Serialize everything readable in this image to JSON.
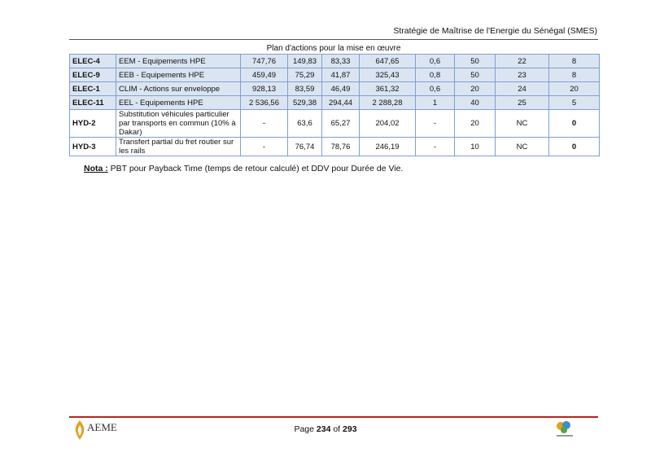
{
  "header": {
    "title": "Stratégie de Maîtrise de l'Energie du Sénégal (SMES)"
  },
  "section": {
    "caption": "Plan d'actions pour la mise en œuvre"
  },
  "table": {
    "rows": [
      [
        "ELEC-4",
        "EEM - Equipements HPE",
        "747,76",
        "149,83",
        "83,33",
        "647,65",
        "0,6",
        "50",
        "22",
        "8"
      ],
      [
        "ELEC-9",
        "EEB - Equipements HPE",
        "459,49",
        "75,29",
        "41,87",
        "325,43",
        "0,8",
        "50",
        "23",
        "8"
      ],
      [
        "ELEC-1",
        "CLIM - Actions sur enveloppe",
        "928,13",
        "83,59",
        "46,49",
        "361,32",
        "0,6",
        "20",
        "24",
        "20"
      ],
      [
        "ELEC-11",
        "EEL - Equipements HPE",
        "2 536,56",
        "529,38",
        "294,44",
        "2 288,28",
        "1",
        "40",
        "25",
        "5"
      ],
      [
        "HYD-2",
        "Substitution véhicules particulier par transports en commun (10% à Dakar)",
        "-",
        "63,6",
        "65,27",
        "204,02",
        "-",
        "20",
        "NC",
        "0"
      ],
      [
        "HYD-3",
        "Transfert partial du fret routier sur les rails",
        "-",
        "76,74",
        "78,76",
        "246,19",
        "-",
        "10",
        "NC",
        "0"
      ]
    ]
  },
  "note": {
    "label": "Nota :",
    "text": "PBT pour Payback Time (temps de retour calculé) et DDV pour Durée de Vie."
  },
  "footer": {
    "page_word": "Page",
    "page": "234",
    "of_word": "of",
    "total": "293",
    "logo": "AEME"
  }
}
